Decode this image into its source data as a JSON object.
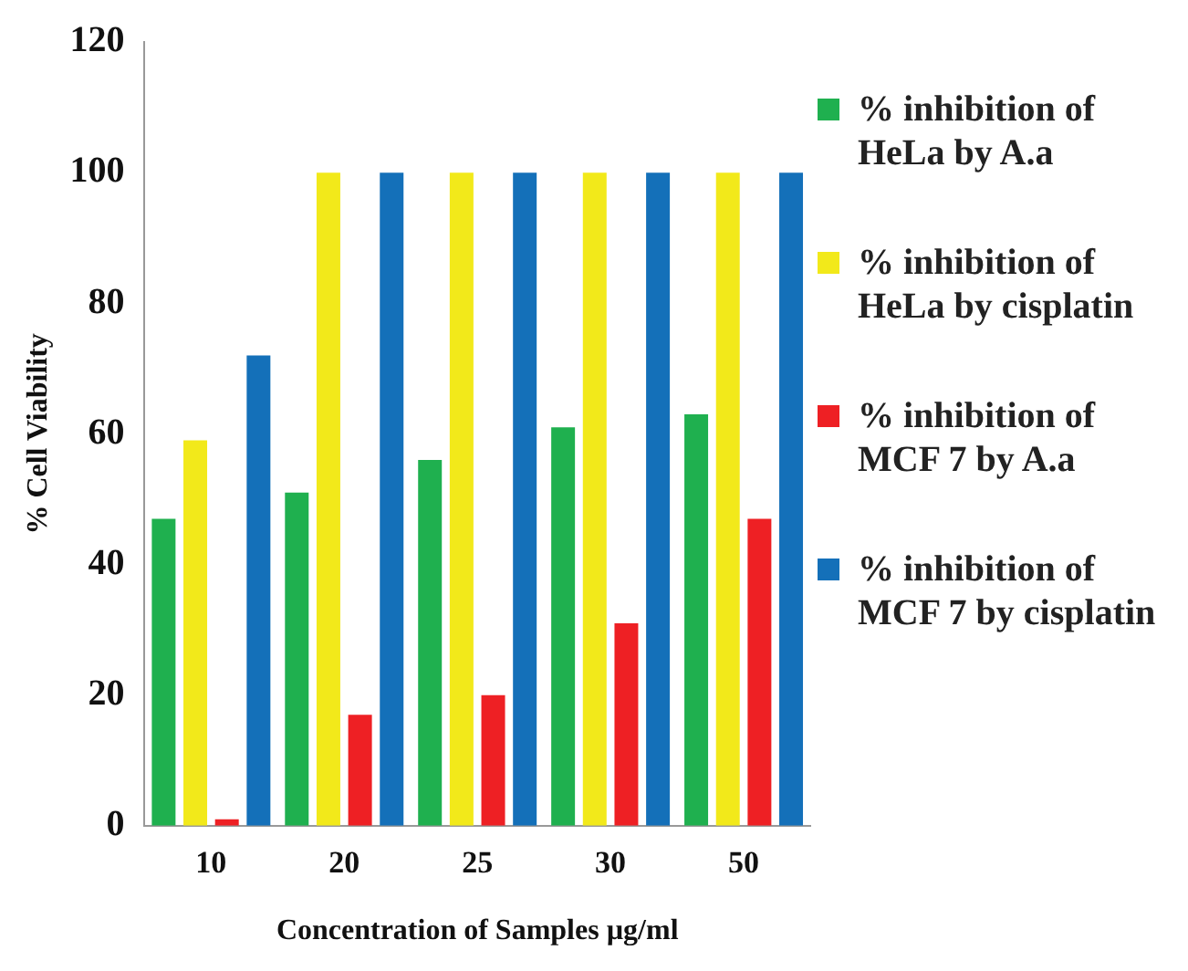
{
  "chart_data": {
    "type": "bar",
    "xlabel": "Concentration of Samples µg/ml",
    "ylabel": "% Cell Viability",
    "categories": [
      "10",
      "20",
      "25",
      "30",
      "50"
    ],
    "series": [
      {
        "name": "% inhibition of HeLa by A.a",
        "color": "#1fb04f",
        "values": [
          47,
          51,
          56,
          61,
          63
        ]
      },
      {
        "name": "% inhibition of HeLa by cisplatin",
        "color": "#f2e91a",
        "values": [
          59,
          100,
          100,
          100,
          100
        ]
      },
      {
        "name": "% inhibition of MCF 7 by A.a",
        "color": "#ee2024",
        "values": [
          1,
          17,
          20,
          31,
          47
        ]
      },
      {
        "name": "% inhibition of MCF 7 by cisplatin",
        "color": "#1470b9",
        "values": [
          72,
          100,
          100,
          100,
          100
        ]
      }
    ],
    "ylim": [
      0,
      120
    ],
    "yticks": [
      0,
      20,
      40,
      60,
      80,
      100,
      120
    ],
    "grid": false,
    "legend": "right"
  }
}
